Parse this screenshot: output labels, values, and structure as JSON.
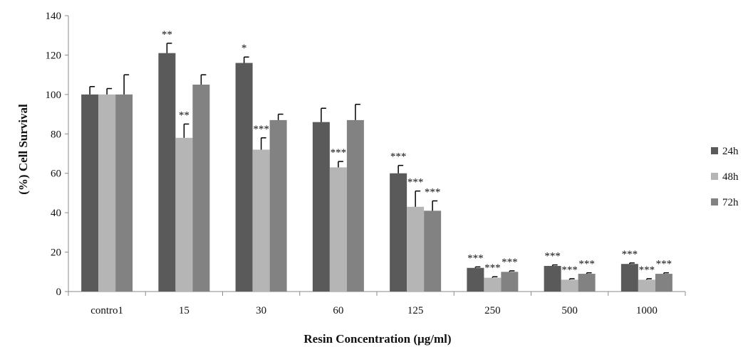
{
  "chart_data": {
    "type": "bar",
    "title": "",
    "xlabel": "Resin Concentration (µg/ml)",
    "ylabel": "(%) Cell Survival",
    "ylim": [
      0,
      140
    ],
    "yticks": [
      0,
      20,
      40,
      60,
      80,
      100,
      120,
      140
    ],
    "grid": false,
    "legend_position": "right",
    "categories": [
      "contro1",
      "15",
      "30",
      "60",
      "125",
      "250",
      "500",
      "1000"
    ],
    "series": [
      {
        "name": "24h",
        "color": "#5a5a5a",
        "values": [
          100,
          121,
          116,
          86,
          60,
          12,
          13,
          14
        ],
        "errors": [
          4,
          5,
          3,
          7,
          4,
          0.5,
          0.5,
          0.5
        ],
        "significance": [
          "",
          "**",
          "*",
          "",
          "***",
          "***",
          "***",
          "***"
        ]
      },
      {
        "name": "48h",
        "color": "#b5b5b5",
        "values": [
          100,
          78,
          72,
          63,
          43,
          7,
          6,
          6
        ],
        "errors": [
          3,
          7,
          6,
          3,
          8,
          0.5,
          0.5,
          0.5
        ],
        "significance": [
          "",
          "**",
          "***",
          "***",
          "***",
          "***",
          "***",
          "***"
        ]
      },
      {
        "name": "72h",
        "color": "#828282",
        "values": [
          100,
          105,
          87,
          87,
          41,
          10,
          9,
          9
        ],
        "errors": [
          10,
          5,
          3,
          8,
          5,
          0.5,
          0.5,
          0.5
        ],
        "significance": [
          "",
          "",
          "",
          "",
          "***",
          "***",
          "***",
          "***"
        ]
      }
    ]
  }
}
